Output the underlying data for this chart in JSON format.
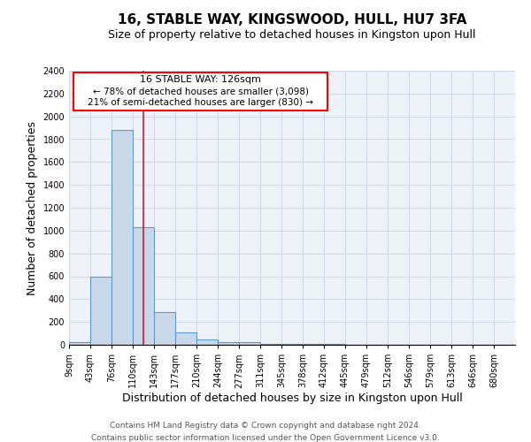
{
  "title1": "16, STABLE WAY, KINGSWOOD, HULL, HU7 3FA",
  "title2": "Size of property relative to detached houses in Kingston upon Hull",
  "xlabel": "Distribution of detached houses by size in Kingston upon Hull",
  "ylabel": "Number of detached properties",
  "footer1": "Contains HM Land Registry data © Crown copyright and database right 2024.",
  "footer2": "Contains public sector information licensed under the Open Government Licence v3.0.",
  "bin_labels": [
    "9sqm",
    "43sqm",
    "76sqm",
    "110sqm",
    "143sqm",
    "177sqm",
    "210sqm",
    "244sqm",
    "277sqm",
    "311sqm",
    "345sqm",
    "378sqm",
    "412sqm",
    "445sqm",
    "479sqm",
    "512sqm",
    "546sqm",
    "579sqm",
    "613sqm",
    "646sqm",
    "680sqm"
  ],
  "bar_heights": [
    20,
    600,
    1880,
    1030,
    290,
    110,
    45,
    25,
    20,
    5,
    5,
    5,
    5,
    0,
    0,
    0,
    0,
    0,
    0,
    0,
    0
  ],
  "bar_color": "#c8d8e8",
  "bar_edge_color": "#5b9bd5",
  "grid_color": "#d0d8e8",
  "background_color": "#eef2f8",
  "annotation_text1": "16 STABLE WAY: 126sqm",
  "annotation_text2": "← 78% of detached houses are smaller (3,098)",
  "annotation_text3": "21% of semi-detached houses are larger (830) →",
  "ylim": [
    0,
    2400
  ],
  "yticks": [
    0,
    200,
    400,
    600,
    800,
    1000,
    1200,
    1400,
    1600,
    1800,
    2000,
    2200,
    2400
  ],
  "title1_fontsize": 11,
  "title2_fontsize": 9,
  "ylabel_fontsize": 9,
  "xlabel_fontsize": 9,
  "footer_fontsize": 6.5,
  "tick_fontsize": 7,
  "annot_fontsize1": 8,
  "annot_fontsize2": 7.5
}
